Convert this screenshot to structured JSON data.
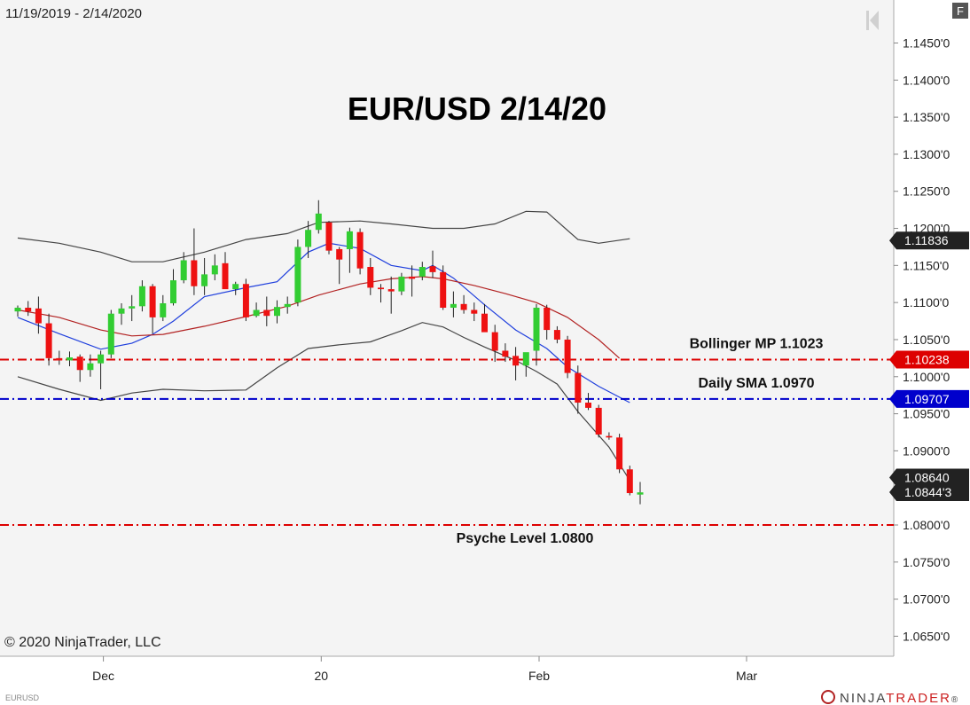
{
  "header": {
    "date_range": "11/19/2019 - 2/14/2020",
    "f_button": "F"
  },
  "footer": {
    "copyright": "© 2020 NinjaTrader, LLC",
    "instrument": "EURUSD",
    "logo_text_1": "NINJA",
    "logo_text_2": "TRADER",
    "logo_mark": "®"
  },
  "colors": {
    "up_candle": "#32cd32",
    "down_candle": "#ee1111",
    "bollinger_bands": "#444444",
    "sma_blue": "#1f3fdd",
    "bollinger_mid": "#b22222",
    "level_red": "#dd0000",
    "level_blue": "#0000cc",
    "background": "#f4f4f4"
  },
  "chart_data": {
    "type": "candlestick",
    "title": "EUR/USD 2/14/20",
    "ylim": [
      1.0623,
      1.1508
    ],
    "y_ticks": [
      {
        "value": 1.145,
        "label": "1.1450'0"
      },
      {
        "value": 1.14,
        "label": "1.1400'0"
      },
      {
        "value": 1.135,
        "label": "1.1350'0"
      },
      {
        "value": 1.13,
        "label": "1.1300'0"
      },
      {
        "value": 1.125,
        "label": "1.1250'0"
      },
      {
        "value": 1.12,
        "label": "1.1200'0"
      },
      {
        "value": 1.115,
        "label": "1.1150'0"
      },
      {
        "value": 1.11,
        "label": "1.1100'0"
      },
      {
        "value": 1.105,
        "label": "1.1050'0"
      },
      {
        "value": 1.1,
        "label": "1.1000'0"
      },
      {
        "value": 1.095,
        "label": "1.0950'0"
      },
      {
        "value": 1.09,
        "label": "1.0900'0"
      },
      {
        "value": 1.08,
        "label": "1.0800'0"
      },
      {
        "value": 1.075,
        "label": "1.0750'0"
      },
      {
        "value": 1.07,
        "label": "1.0700'0"
      },
      {
        "value": 1.065,
        "label": "1.0650'0"
      }
    ],
    "x_ticks": [
      {
        "index": 8,
        "label": "Dec"
      },
      {
        "index": 29,
        "label": "20"
      },
      {
        "index": 50,
        "label": "Feb"
      },
      {
        "index": 70,
        "label": "Mar"
      }
    ],
    "candles": [
      [
        1.1088,
        1.1096,
        1.1081,
        1.1093
      ],
      [
        1.1093,
        1.1102,
        1.1082,
        1.1088
      ],
      [
        1.1092,
        1.1108,
        1.1058,
        1.1072
      ],
      [
        1.1072,
        1.1085,
        1.1015,
        1.1025
      ],
      [
        1.1025,
        1.1035,
        1.1016,
        1.1022
      ],
      [
        1.1022,
        1.1034,
        1.1014,
        1.1026
      ],
      [
        1.1027,
        1.103,
        1.0993,
        1.1009
      ],
      [
        1.1009,
        1.103,
        1.1,
        1.1018
      ],
      [
        1.1018,
        1.1035,
        1.0983,
        1.103
      ],
      [
        1.103,
        1.109,
        1.1025,
        1.1085
      ],
      [
        1.1085,
        1.1099,
        1.107,
        1.1092
      ],
      [
        1.1092,
        1.111,
        1.1075,
        1.1095
      ],
      [
        1.1095,
        1.113,
        1.1088,
        1.1122
      ],
      [
        1.1122,
        1.1125,
        1.1058,
        1.108
      ],
      [
        1.108,
        1.111,
        1.1075,
        1.1099
      ],
      [
        1.1099,
        1.1145,
        1.1096,
        1.113
      ],
      [
        1.113,
        1.1168,
        1.1126,
        1.1157
      ],
      [
        1.1157,
        1.12,
        1.111,
        1.1122
      ],
      [
        1.1122,
        1.116,
        1.111,
        1.1138
      ],
      [
        1.1138,
        1.1165,
        1.113,
        1.115
      ],
      [
        1.1153,
        1.1168,
        1.112,
        1.1118
      ],
      [
        1.1118,
        1.1128,
        1.111,
        1.1125
      ],
      [
        1.1125,
        1.1132,
        1.1075,
        1.108
      ],
      [
        1.1082,
        1.11,
        1.108,
        1.109
      ],
      [
        1.109,
        1.1108,
        1.1068,
        1.1082
      ],
      [
        1.1082,
        1.1103,
        1.1072,
        1.1094
      ],
      [
        1.1094,
        1.1108,
        1.1085,
        1.1098
      ],
      [
        1.11,
        1.1185,
        1.1095,
        1.1175
      ],
      [
        1.1175,
        1.121,
        1.116,
        1.1198
      ],
      [
        1.1198,
        1.1238,
        1.1193,
        1.122
      ],
      [
        1.1208,
        1.121,
        1.1165,
        1.117
      ],
      [
        1.1172,
        1.1175,
        1.1125,
        1.1158
      ],
      [
        1.1172,
        1.1201,
        1.114,
        1.1196
      ],
      [
        1.1195,
        1.12,
        1.1138,
        1.1146
      ],
      [
        1.1148,
        1.116,
        1.111,
        1.112
      ],
      [
        1.112,
        1.1125,
        1.11,
        1.1118
      ],
      [
        1.1118,
        1.1135,
        1.1085,
        1.1115
      ],
      [
        1.1115,
        1.114,
        1.111,
        1.1135
      ],
      [
        1.1135,
        1.115,
        1.1108,
        1.1132
      ],
      [
        1.1135,
        1.1155,
        1.113,
        1.1148
      ],
      [
        1.1149,
        1.117,
        1.1133,
        1.1141
      ],
      [
        1.1141,
        1.115,
        1.109,
        1.1093
      ],
      [
        1.1093,
        1.1115,
        1.108,
        1.1098
      ],
      [
        1.1098,
        1.111,
        1.1085,
        1.109
      ],
      [
        1.109,
        1.11,
        1.1075,
        1.1085
      ],
      [
        1.1085,
        1.1098,
        1.1065,
        1.106
      ],
      [
        1.106,
        1.107,
        1.102,
        1.1035
      ],
      [
        1.1035,
        1.1045,
        1.102,
        1.1027
      ],
      [
        1.1028,
        1.104,
        1.0995,
        1.1015
      ],
      [
        1.1015,
        1.103,
        1.1,
        1.1033
      ],
      [
        1.1035,
        1.1098,
        1.1015,
        1.1093
      ],
      [
        1.1093,
        1.1097,
        1.105,
        1.1063
      ],
      [
        1.1063,
        1.1068,
        1.1045,
        1.105
      ],
      [
        1.105,
        1.1055,
        1.0998,
        1.1005
      ],
      [
        1.1005,
        1.1015,
        1.095,
        1.0965
      ],
      [
        1.0965,
        1.0978,
        1.0955,
        1.0958
      ],
      [
        1.0958,
        1.0962,
        1.0918,
        1.0922
      ],
      [
        1.092,
        1.0925,
        1.0915,
        1.0918
      ],
      [
        1.0918,
        1.0923,
        1.087,
        1.0875
      ],
      [
        1.0875,
        1.088,
        1.084,
        1.0843
      ],
      [
        1.0841,
        1.0858,
        1.0828,
        1.0844
      ]
    ],
    "series": [
      {
        "points": [
          [
            0,
            1.1187
          ],
          [
            4,
            1.118
          ],
          [
            8,
            1.1168
          ],
          [
            11,
            1.1155
          ],
          [
            14,
            1.1155
          ],
          [
            18,
            1.1168
          ],
          [
            22,
            1.1185
          ],
          [
            26,
            1.1193
          ],
          [
            29,
            1.1208
          ],
          [
            33,
            1.121
          ],
          [
            36,
            1.1206
          ],
          [
            40,
            1.12
          ],
          [
            43,
            1.12
          ],
          [
            46,
            1.1206
          ],
          [
            49,
            1.1223
          ],
          [
            51,
            1.1222
          ],
          [
            54,
            1.1185
          ],
          [
            56,
            1.118
          ],
          [
            59,
            1.1186
          ]
        ]
      },
      {
        "points": [
          [
            0,
            1.1
          ],
          [
            4,
            1.0983
          ],
          [
            8,
            1.0968
          ],
          [
            11,
            1.0978
          ],
          [
            14,
            1.0983
          ],
          [
            18,
            1.0981
          ],
          [
            22,
            1.0982
          ],
          [
            25,
            1.1012
          ],
          [
            28,
            1.1038
          ],
          [
            31,
            1.1043
          ],
          [
            34,
            1.1047
          ],
          [
            37,
            1.1062
          ],
          [
            39,
            1.1073
          ],
          [
            41,
            1.1067
          ],
          [
            43,
            1.1053
          ],
          [
            45,
            1.104
          ],
          [
            48,
            1.1022
          ],
          [
            50,
            1.1007
          ],
          [
            52,
            1.099
          ],
          [
            54,
            1.0953
          ],
          [
            57,
            1.0905
          ],
          [
            59,
            1.086
          ]
        ]
      },
      {
        "points": [
          [
            0,
            1.108
          ],
          [
            4,
            1.1058
          ],
          [
            8,
            1.1037
          ],
          [
            11,
            1.1045
          ],
          [
            13,
            1.1057
          ],
          [
            15,
            1.1075
          ],
          [
            18,
            1.1108
          ],
          [
            22,
            1.112
          ],
          [
            25,
            1.1128
          ],
          [
            28,
            1.1168
          ],
          [
            30,
            1.118
          ],
          [
            33,
            1.1173
          ],
          [
            36,
            1.115
          ],
          [
            39,
            1.1143
          ],
          [
            40,
            1.115
          ],
          [
            42,
            1.1133
          ],
          [
            45,
            1.1097
          ],
          [
            48,
            1.1063
          ],
          [
            51,
            1.1038
          ],
          [
            53,
            1.1013
          ],
          [
            56,
            1.0987
          ],
          [
            59,
            1.0965
          ]
        ]
      },
      {
        "points": [
          [
            0,
            1.109
          ],
          [
            4,
            1.108
          ],
          [
            8,
            1.1063
          ],
          [
            11,
            1.1055
          ],
          [
            14,
            1.1057
          ],
          [
            18,
            1.1068
          ],
          [
            22,
            1.1081
          ],
          [
            26,
            1.1095
          ],
          [
            29,
            1.111
          ],
          [
            33,
            1.1125
          ],
          [
            36,
            1.1132
          ],
          [
            39,
            1.1135
          ],
          [
            41,
            1.1132
          ],
          [
            44,
            1.1123
          ],
          [
            47,
            1.1112
          ],
          [
            50,
            1.11
          ],
          [
            53,
            1.108
          ],
          [
            56,
            1.105
          ],
          [
            58,
            1.1025
          ]
        ]
      }
    ],
    "levels": [
      {
        "label": "Bollinger MP 1.1023",
        "value": 1.1023,
        "tag": "1.10238",
        "style": "red"
      },
      {
        "label": "Daily SMA 1.0970",
        "value": 1.097,
        "tag": "1.09707",
        "style": "blue"
      },
      {
        "label": "Psyche Level 1.0800",
        "value": 1.08,
        "tag": "",
        "style": "red"
      }
    ],
    "price_tags": [
      {
        "value": 1.11836,
        "label": "1.11836",
        "color": "#222222"
      },
      {
        "value": 1.0864,
        "label": "1.08640",
        "color": "#222222"
      },
      {
        "value": 1.08443,
        "label": "1.0844'3",
        "color": "#222222"
      }
    ]
  }
}
